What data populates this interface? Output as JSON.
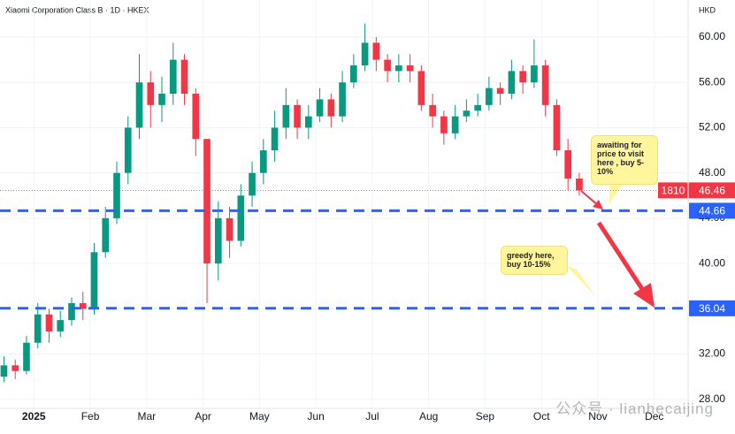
{
  "chart_data": {
    "type": "candlestick",
    "title": "Xiaomi Corporation Class B · 1D · HKEX",
    "currency": "HKD",
    "symbol": "1810",
    "last_price": 46.46,
    "x": [
      0.47,
      0.67,
      0.87,
      1.07,
      1.27,
      1.47,
      1.67,
      1.87,
      2.07,
      2.27,
      2.47,
      2.67,
      2.87,
      3.07,
      3.27,
      3.47,
      3.67,
      3.87,
      4.07,
      4.27,
      4.47,
      4.67,
      4.87,
      5.07,
      5.27,
      5.47,
      5.67,
      5.87,
      6.07,
      6.27,
      6.47,
      6.67,
      6.87,
      7.07,
      7.27,
      7.47,
      7.67,
      7.87,
      8.07,
      8.27,
      8.47,
      8.67,
      8.87,
      9.07,
      9.27,
      9.47,
      9.67,
      9.87,
      10.07,
      10.27,
      10.47,
      10.67
    ],
    "open": [
      30,
      31,
      30.5,
      33,
      35.5,
      34,
      35,
      36.5,
      36,
      41,
      44,
      48,
      52,
      56,
      54,
      55,
      58,
      55,
      51,
      40,
      44,
      42,
      46,
      48,
      50,
      52,
      54,
      52,
      53,
      54.5,
      53,
      56,
      57.5,
      59.5,
      58,
      57,
      57.5,
      57,
      54,
      53,
      51.5,
      53,
      53.5,
      54,
      55.5,
      55,
      57,
      56,
      57.5,
      54,
      50,
      47.5
    ],
    "high": [
      31.8,
      31.5,
      33.6,
      36.5,
      36,
      35.8,
      37,
      37.5,
      41.8,
      45,
      49,
      53,
      58.5,
      57,
      56.5,
      59.5,
      58.5,
      55.5,
      51,
      45.5,
      45,
      47,
      49,
      51,
      53.5,
      55.5,
      54.5,
      54,
      55.5,
      55,
      57,
      58.5,
      61.2,
      60,
      58.5,
      58.5,
      58.5,
      57.5,
      55,
      53.5,
      54,
      54.5,
      55,
      56.5,
      56,
      58,
      57.5,
      59.8,
      58,
      54.5,
      51,
      48
    ],
    "low": [
      29.5,
      29.8,
      30.2,
      32.5,
      33,
      33.5,
      34.5,
      35,
      35.5,
      40.5,
      43.5,
      47,
      51,
      52,
      52.5,
      54,
      54,
      49.5,
      36.5,
      38.5,
      40.5,
      41.5,
      45,
      47,
      49,
      51,
      51,
      51,
      52.5,
      52,
      52.5,
      55.5,
      57,
      57,
      56,
      56,
      56,
      53.5,
      52,
      50.5,
      51,
      52.5,
      53,
      53.5,
      54,
      54.5,
      55,
      55.5,
      53,
      49.5,
      46.5,
      46
    ],
    "close": [
      31,
      30.5,
      33,
      35.5,
      34,
      35,
      36.5,
      36,
      41,
      44,
      48,
      52,
      56,
      54,
      55,
      58,
      55,
      51,
      40,
      44,
      42,
      46,
      48,
      50,
      52,
      54,
      52,
      53,
      54.5,
      53,
      56,
      57.5,
      59.5,
      58,
      57,
      57.5,
      57,
      54,
      53,
      51.5,
      53,
      53.5,
      54,
      55.5,
      55,
      57,
      56,
      57.5,
      54,
      50,
      47.5,
      46.46
    ],
    "up_color": "#089981",
    "down_color": "#f23645",
    "xlim": [
      0.4,
      12.6
    ],
    "xticks": [
      {
        "value": 1,
        "label": "2025"
      },
      {
        "value": 2,
        "label": "Feb"
      },
      {
        "value": 3,
        "label": "Mar"
      },
      {
        "value": 4,
        "label": "Apr"
      },
      {
        "value": 5,
        "label": "May"
      },
      {
        "value": 6,
        "label": "Jun"
      },
      {
        "value": 7,
        "label": "Jul"
      },
      {
        "value": 8,
        "label": "Aug"
      },
      {
        "value": 9,
        "label": "Sep"
      },
      {
        "value": 10,
        "label": "Oct"
      },
      {
        "value": 11,
        "label": "Nov"
      },
      {
        "value": 12,
        "label": "Dec"
      }
    ],
    "ylim": [
      27.2,
      63.28
    ],
    "yticks": [
      {
        "value": 28,
        "label": "28.00"
      },
      {
        "value": 32,
        "label": "32.00"
      },
      {
        "value": 36,
        "label": "36.00"
      },
      {
        "value": 40,
        "label": "40.00"
      },
      {
        "value": 44,
        "label": "44.00"
      },
      {
        "value": 48,
        "label": "48.00"
      },
      {
        "value": 52,
        "label": "52.00"
      },
      {
        "value": 56,
        "label": "56.00"
      },
      {
        "value": 60,
        "label": "60.00"
      }
    ],
    "grid": true,
    "levels": [
      44.66,
      36.04
    ],
    "level_color": "#2962ff",
    "annotations": [
      "awaiting for price to visit here , buy 5-10%",
      "greedy here, buy 10-15%"
    ],
    "watermark": "公众号 · lianhecaijing"
  }
}
